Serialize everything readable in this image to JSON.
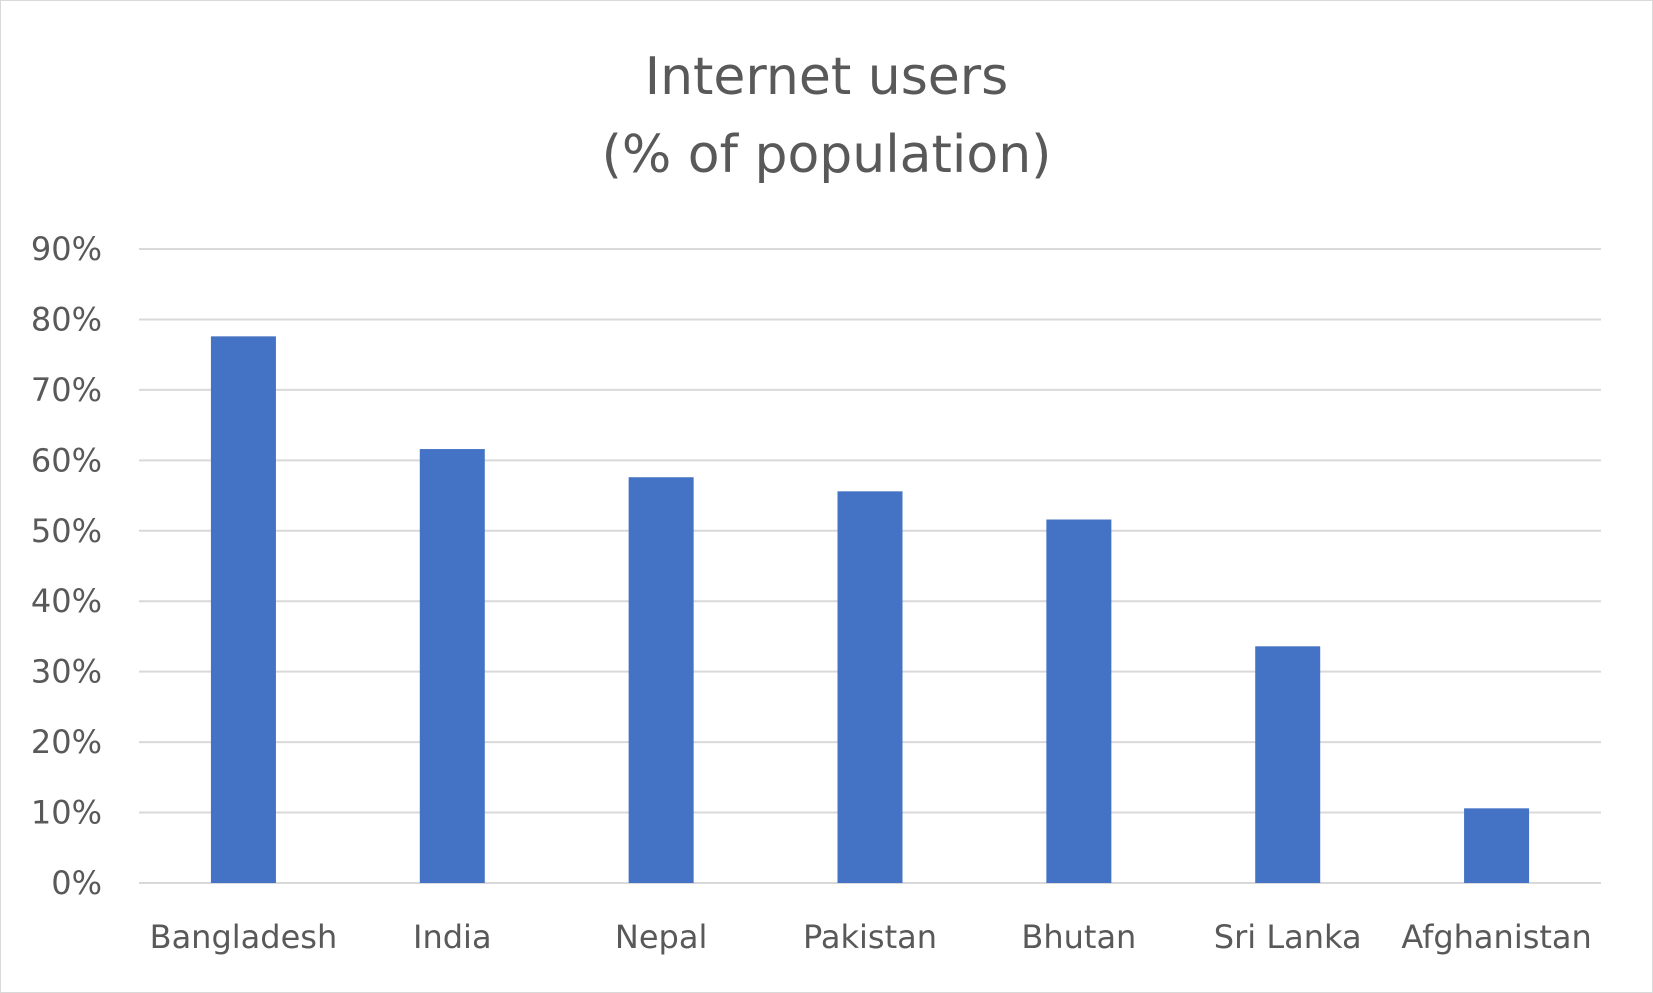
{
  "chart_data": {
    "type": "bar",
    "title_lines": [
      "Internet users",
      "(% of population)"
    ],
    "categories": [
      "Bangladesh",
      "India",
      "Nepal",
      "Pakistan",
      "Bhutan",
      "Sri Lanka",
      "Afghanistan"
    ],
    "values": [
      77.6,
      61.6,
      57.6,
      55.6,
      51.6,
      33.6,
      10.6
    ],
    "y_ticks": [
      "0%",
      "10%",
      "20%",
      "30%",
      "40%",
      "50%",
      "60%",
      "70%",
      "80%",
      "90%"
    ],
    "ylim": [
      0,
      90
    ],
    "grid": true,
    "legend": false,
    "bar_color": "#4472C4",
    "grid_color": "#d9d9d9",
    "text_color": "#595959"
  }
}
